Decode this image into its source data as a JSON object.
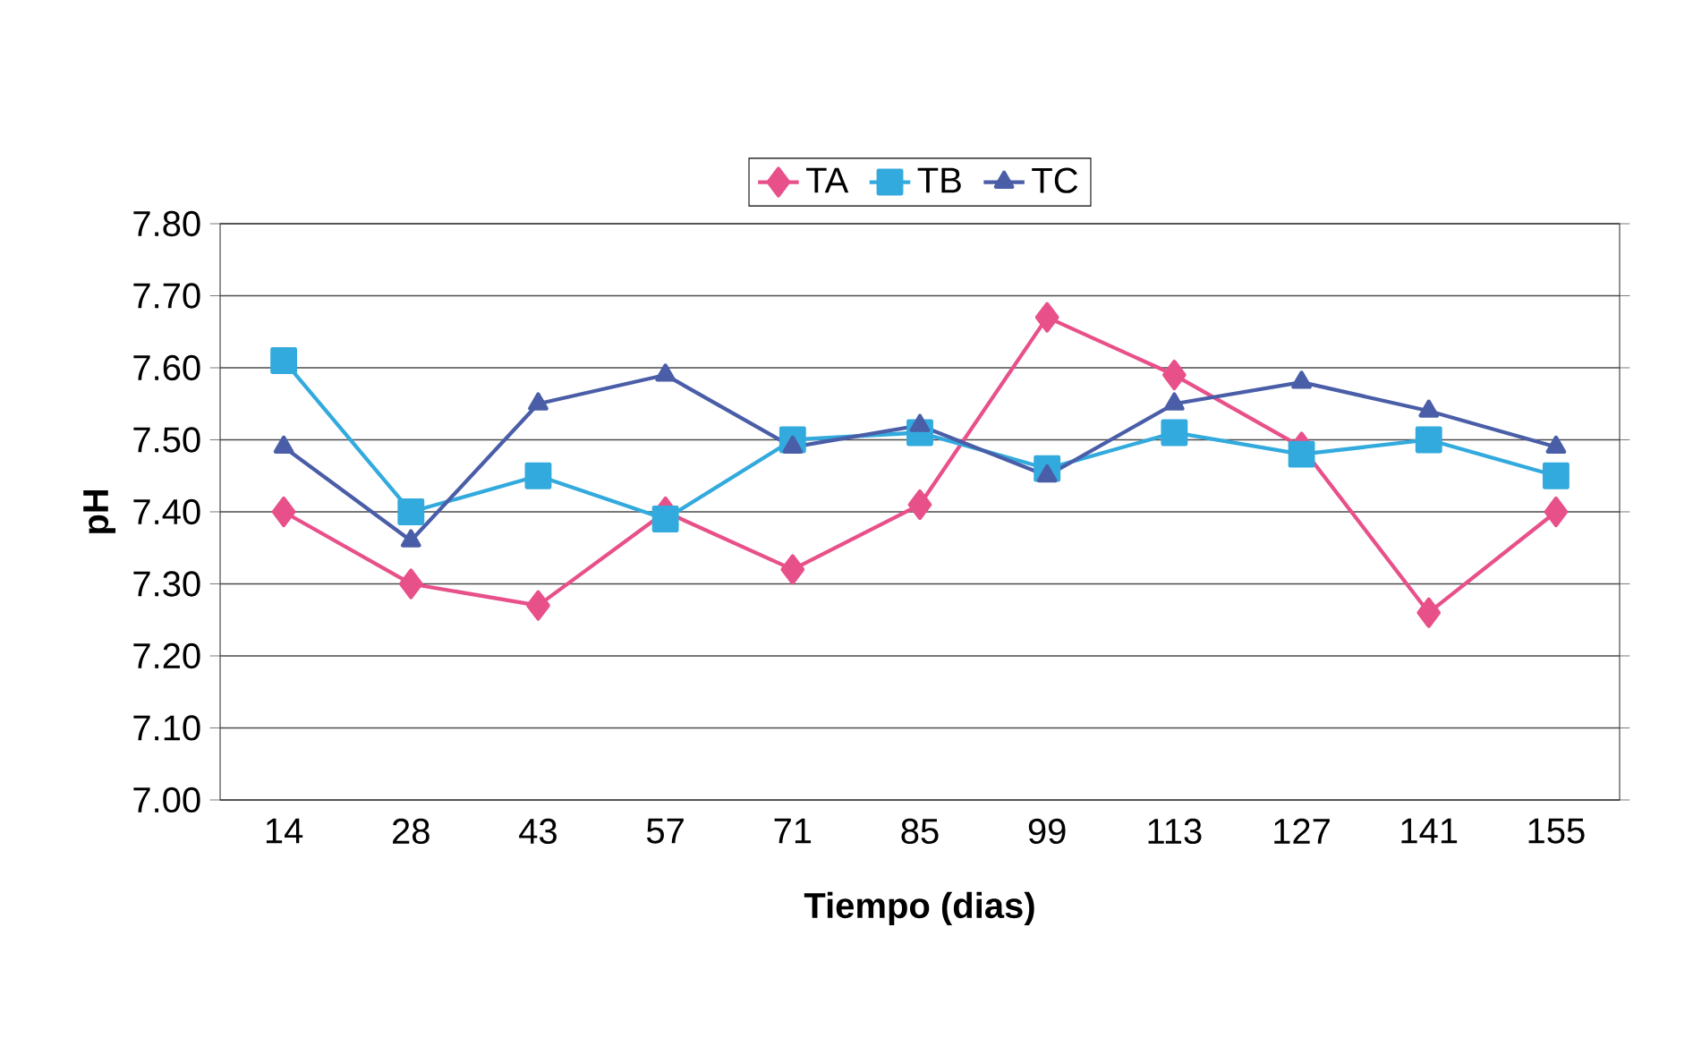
{
  "chart_data": {
    "type": "line",
    "xlabel": "Tiempo (dias)",
    "ylabel": "pH",
    "categories": [
      "14",
      "28",
      "43",
      "57",
      "71",
      "85",
      "99",
      "113",
      "127",
      "141",
      "155"
    ],
    "series": [
      {
        "name": "TA",
        "color": "#e8508a",
        "marker": "diamond",
        "values": [
          7.4,
          7.3,
          7.27,
          7.4,
          7.32,
          7.41,
          7.67,
          7.59,
          7.49,
          7.26,
          7.4
        ]
      },
      {
        "name": "TB",
        "color": "#33aadd",
        "marker": "square",
        "values": [
          7.61,
          7.4,
          7.45,
          7.39,
          7.5,
          7.51,
          7.46,
          7.51,
          7.48,
          7.5,
          7.45
        ]
      },
      {
        "name": "TC",
        "color": "#4a5ea8",
        "marker": "triangle",
        "values": [
          7.49,
          7.36,
          7.55,
          7.59,
          7.49,
          7.52,
          7.45,
          7.55,
          7.58,
          7.54,
          7.49
        ]
      }
    ],
    "ylim": [
      7.0,
      7.8
    ],
    "yticks": [
      {
        "value": 7.0,
        "label": "7.00"
      },
      {
        "value": 7.1,
        "label": "7.10"
      },
      {
        "value": 7.2,
        "label": "7.20"
      },
      {
        "value": 7.3,
        "label": "7.30"
      },
      {
        "value": 7.4,
        "label": "7.40"
      },
      {
        "value": 7.5,
        "label": "7.50"
      },
      {
        "value": 7.6,
        "label": "7.60"
      },
      {
        "value": 7.7,
        "label": "7.70"
      },
      {
        "value": 7.8,
        "label": "7.80"
      }
    ],
    "grid": "y",
    "legend": "top",
    "line_style": "solid"
  }
}
